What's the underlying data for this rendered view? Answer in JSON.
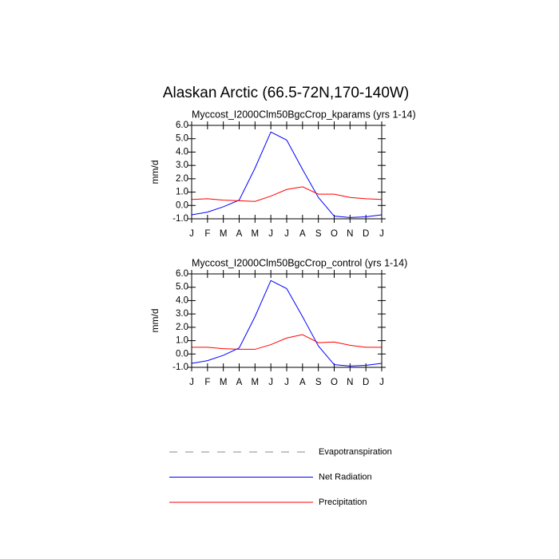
{
  "title": "Alaskan Arctic (66.5-72N,170-140W)",
  "chart_data": [
    {
      "type": "line",
      "subtitle": "Myccost_I2000Clm50BgcCrop_kparams (yrs 1-14)",
      "ylabel": "mm/d",
      "categories": [
        "J",
        "F",
        "M",
        "A",
        "M",
        "J",
        "J",
        "A",
        "S",
        "O",
        "N",
        "D",
        "J"
      ],
      "series": [
        {
          "name": "Net Radiation",
          "color": "#0000ff",
          "values": [
            -0.7,
            -0.5,
            -0.1,
            0.4,
            2.8,
            5.5,
            4.9,
            2.7,
            0.6,
            -0.8,
            -0.9,
            -0.85,
            -0.7
          ]
        },
        {
          "name": "Precipitation",
          "color": "#ff0000",
          "values": [
            0.45,
            0.5,
            0.4,
            0.35,
            0.3,
            0.7,
            1.2,
            1.4,
            0.85,
            0.85,
            0.6,
            0.5,
            0.45
          ]
        }
      ],
      "ylim": [
        -1,
        6
      ],
      "yticks": [
        {
          "value": 6,
          "label": "6.0"
        },
        {
          "value": 5,
          "label": "5.0"
        },
        {
          "value": 4,
          "label": "4.0"
        },
        {
          "value": 3,
          "label": "3.0"
        },
        {
          "value": 2,
          "label": "2.0"
        },
        {
          "value": 1,
          "label": "1.0"
        },
        {
          "value": 0,
          "label": "0.0"
        },
        {
          "value": -1,
          "label": "-1.0"
        }
      ]
    },
    {
      "type": "line",
      "subtitle": "Myccost_I2000Clm50BgcCrop_control (yrs 1-14)",
      "ylabel": "mm/d",
      "categories": [
        "J",
        "F",
        "M",
        "A",
        "M",
        "J",
        "J",
        "A",
        "S",
        "O",
        "N",
        "D",
        "J"
      ],
      "series": [
        {
          "name": "Net Radiation",
          "color": "#0000ff",
          "values": [
            -0.7,
            -0.5,
            -0.1,
            0.45,
            2.8,
            5.5,
            4.9,
            2.8,
            0.6,
            -0.8,
            -0.9,
            -0.85,
            -0.7
          ]
        },
        {
          "name": "Precipitation",
          "color": "#ff0000",
          "values": [
            0.5,
            0.5,
            0.4,
            0.35,
            0.35,
            0.7,
            1.2,
            1.45,
            0.85,
            0.9,
            0.65,
            0.5,
            0.5
          ]
        }
      ],
      "ylim": [
        -1,
        6
      ],
      "yticks": [
        {
          "value": 6,
          "label": "6.0"
        },
        {
          "value": 5,
          "label": "5.0"
        },
        {
          "value": 4,
          "label": "4.0"
        },
        {
          "value": 3,
          "label": "3.0"
        },
        {
          "value": 2,
          "label": "2.0"
        },
        {
          "value": 1,
          "label": "1.0"
        },
        {
          "value": 0,
          "label": "0.0"
        },
        {
          "value": -1,
          "label": "-1.0"
        }
      ]
    }
  ],
  "legend": [
    {
      "name": "Evapotranspiration",
      "color": "#888888",
      "dash": true
    },
    {
      "name": "Net Radiation",
      "color": "#0000ff",
      "dash": false
    },
    {
      "name": "Precipitation",
      "color": "#ff0000",
      "dash": false
    }
  ]
}
